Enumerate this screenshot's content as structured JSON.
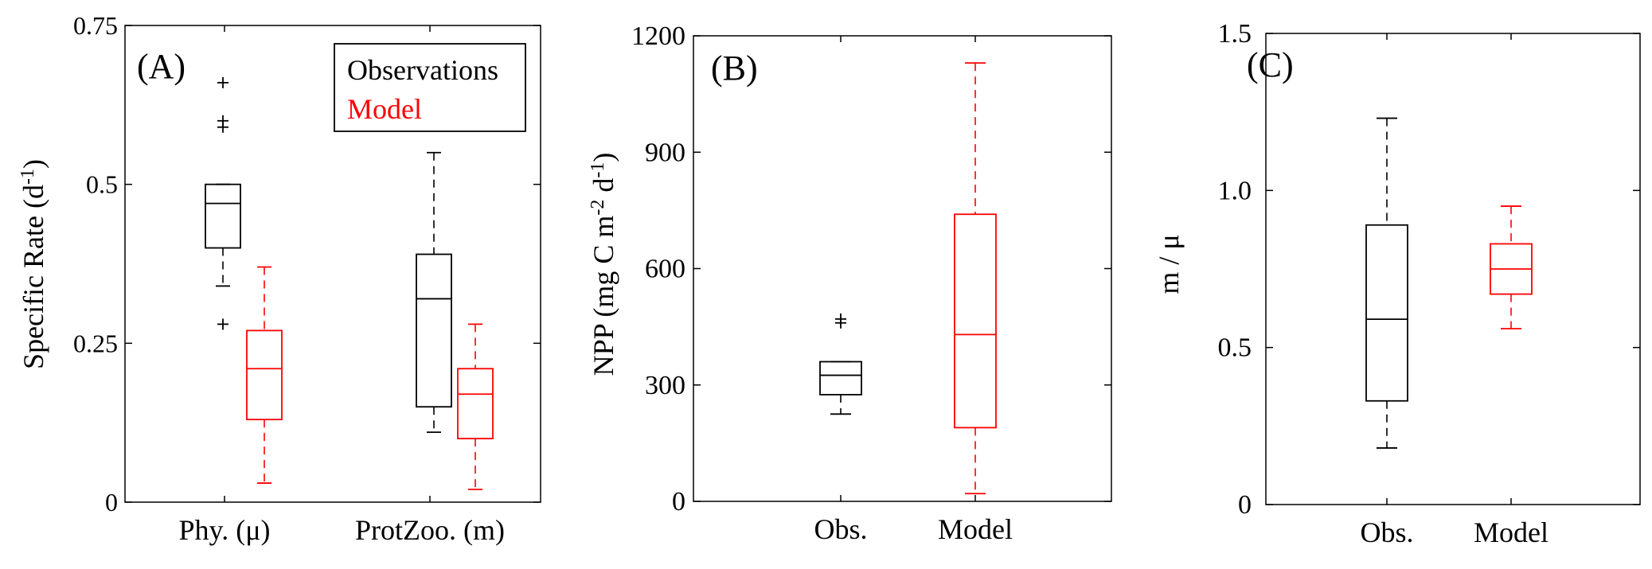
{
  "colors": {
    "observations": "#000000",
    "model": "#ff0000",
    "axis": "#000000"
  },
  "chart_data": [
    {
      "type": "box",
      "panel_label": "(A)",
      "ylabel": "Specific Rate (d",
      "ylabel_sup": "-1",
      "ylabel_close": ")",
      "ylim": [
        0,
        0.75
      ],
      "yticks": [
        0,
        0.25,
        0.5,
        0.75
      ],
      "ytick_labels": [
        "0",
        "0.25",
        "0.5",
        "0.75"
      ],
      "categories": [
        "Phy. (μ)",
        "ProtZoo. (m)"
      ],
      "legend": {
        "position": "top-right",
        "entries": [
          "Observations",
          "Model"
        ]
      },
      "series": [
        {
          "name": "Observations",
          "color": "#000000",
          "boxes": [
            {
              "category": "Phy. (μ)",
              "q1": 0.4,
              "median": 0.47,
              "q3": 0.5,
              "whisker_low": 0.34,
              "whisker_high": 0.5,
              "outliers": [
                0.28,
                0.59,
                0.6,
                0.66
              ]
            },
            {
              "category": "ProtZoo. (m)",
              "q1": 0.15,
              "median": 0.32,
              "q3": 0.39,
              "whisker_low": 0.11,
              "whisker_high": 0.55,
              "outliers": []
            }
          ]
        },
        {
          "name": "Model",
          "color": "#ff0000",
          "boxes": [
            {
              "category": "Phy. (μ)",
              "q1": 0.13,
              "median": 0.21,
              "q3": 0.27,
              "whisker_low": 0.03,
              "whisker_high": 0.37,
              "outliers": []
            },
            {
              "category": "ProtZoo. (m)",
              "q1": 0.1,
              "median": 0.17,
              "q3": 0.21,
              "whisker_low": 0.02,
              "whisker_high": 0.28,
              "outliers": []
            }
          ]
        }
      ]
    },
    {
      "type": "box",
      "panel_label": "(B)",
      "ylabel": "NPP (mg C m",
      "ylabel_sup": "-2",
      "ylabel_mid": " d",
      "ylabel_sup2": "-1",
      "ylabel_close": ")",
      "ylim": [
        0,
        1200
      ],
      "yticks": [
        0,
        300,
        600,
        900,
        1200
      ],
      "ytick_labels": [
        "0",
        "300",
        "600",
        "900",
        "1200"
      ],
      "categories": [
        "Obs.",
        "Model"
      ],
      "series": [
        {
          "name": "Observations",
          "color": "#000000",
          "boxes": [
            {
              "category": "Obs.",
              "q1": 275,
              "median": 325,
              "q3": 360,
              "whisker_low": 225,
              "whisker_high": 360,
              "outliers": [
                460,
                470
              ]
            }
          ]
        },
        {
          "name": "Model",
          "color": "#ff0000",
          "boxes": [
            {
              "category": "Model",
              "q1": 190,
              "median": 430,
              "q3": 740,
              "whisker_low": 20,
              "whisker_high": 1130,
              "outliers": []
            }
          ]
        }
      ]
    },
    {
      "type": "box",
      "panel_label": "(C)",
      "ylabel": "m / μ",
      "ylim": [
        0,
        1.5
      ],
      "yticks": [
        0,
        0.5,
        1.0,
        1.5
      ],
      "ytick_labels": [
        "0",
        "0.5",
        "1.0",
        "1.5"
      ],
      "categories": [
        "Obs.",
        "Model"
      ],
      "series": [
        {
          "name": "Observations",
          "color": "#000000",
          "boxes": [
            {
              "category": "Obs.",
              "q1": 0.33,
              "median": 0.59,
              "q3": 0.89,
              "whisker_low": 0.18,
              "whisker_high": 1.23,
              "outliers": []
            }
          ]
        },
        {
          "name": "Model",
          "color": "#ff0000",
          "boxes": [
            {
              "category": "Model",
              "q1": 0.67,
              "median": 0.75,
              "q3": 0.83,
              "whisker_low": 0.56,
              "whisker_high": 0.95,
              "outliers": []
            }
          ]
        }
      ]
    }
  ]
}
